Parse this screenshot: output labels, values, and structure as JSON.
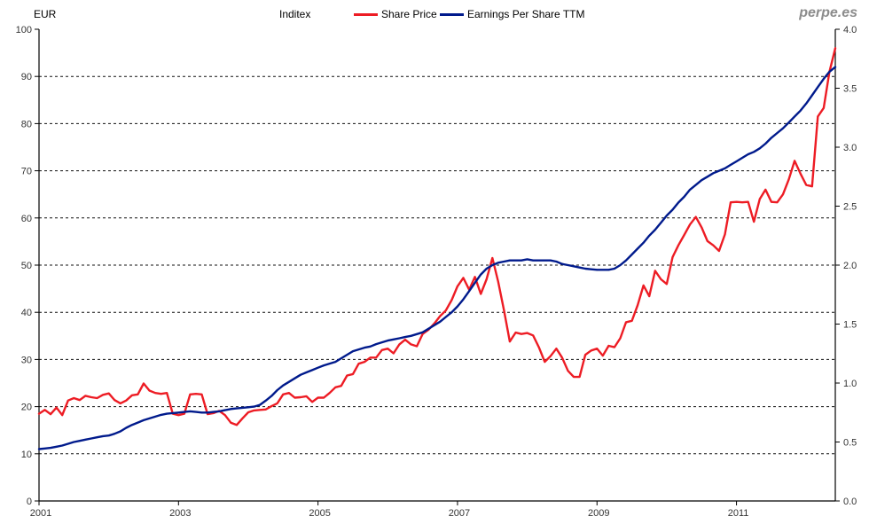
{
  "header": {
    "axis_unit_label": "EUR",
    "title": "Inditex",
    "watermark": "perpe.es"
  },
  "legend": [
    {
      "label": "Share Price",
      "color": "#ed1c24"
    },
    {
      "label": "Earnings Per Share TTM",
      "color": "#001a8c"
    }
  ],
  "chart_data": {
    "type": "line",
    "title": "Inditex",
    "x_unit": "monthly, Jan 2001 to mid 2012",
    "x_tick_labels": [
      "2001",
      "2003",
      "2005",
      "2007",
      "2009",
      "2011"
    ],
    "x_years_per_label_gap": 2,
    "left_axis": {
      "title": "EUR",
      "min": 0,
      "max": 100,
      "tick_step": 10,
      "tick_labels": [
        "0",
        "10",
        "20",
        "30",
        "40",
        "50",
        "60",
        "70",
        "80",
        "90",
        "100"
      ]
    },
    "right_axis": {
      "min": 0.0,
      "max": 4.0,
      "tick_step": 0.5,
      "tick_labels": [
        "0.0",
        "0.5",
        "1.0",
        "1.5",
        "2.0",
        "2.5",
        "3.0",
        "3.5",
        "4.0"
      ]
    },
    "grid": "horizontal dashed black lines at left-axis steps of 10",
    "legend_position": "top-center",
    "series": [
      {
        "name": "Share Price",
        "axis": "left",
        "color": "#ed1c24",
        "values": [
          18.5,
          19.3,
          18.4,
          19.8,
          18.2,
          21.3,
          21.8,
          21.4,
          22.3,
          22.0,
          21.8,
          22.5,
          22.8,
          21.4,
          20.7,
          21.3,
          22.4,
          22.6,
          24.9,
          23.4,
          22.9,
          22.7,
          22.9,
          18.5,
          18.2,
          18.5,
          22.6,
          22.7,
          22.6,
          18.4,
          18.6,
          19.1,
          18.2,
          16.6,
          16.1,
          17.5,
          18.8,
          19.2,
          19.3,
          19.4,
          20.1,
          20.7,
          22.6,
          22.9,
          21.9,
          22.0,
          22.2,
          21.0,
          21.9,
          21.9,
          22.9,
          24.1,
          24.4,
          26.6,
          26.9,
          29.1,
          29.5,
          30.4,
          30.4,
          32.0,
          32.3,
          31.3,
          33.2,
          34.2,
          33.2,
          32.8,
          35.4,
          36.3,
          37.6,
          39.2,
          40.4,
          42.6,
          45.5,
          47.3,
          44.8,
          47.5,
          43.9,
          47.0,
          51.5,
          46.5,
          40.4,
          33.8,
          35.7,
          35.4,
          35.6,
          35.1,
          32.6,
          29.5,
          30.7,
          32.3,
          30.4,
          27.6,
          26.3,
          26.3,
          31.0,
          31.9,
          32.3,
          30.8,
          32.9,
          32.6,
          34.5,
          37.9,
          38.2,
          41.5,
          45.7,
          43.4,
          48.8,
          47.0,
          46.0,
          51.7,
          54.2,
          56.4,
          58.6,
          60.2,
          58.0,
          55.1,
          54.2,
          53.0,
          56.5,
          63.3,
          63.4,
          63.3,
          63.4,
          59.2,
          64.0,
          66.0,
          63.4,
          63.3,
          65.0,
          68.2,
          72.1,
          69.4,
          67.0,
          66.7,
          81.5,
          83.3,
          91.0,
          96.0
        ]
      },
      {
        "name": "Earnings Per Share TTM",
        "axis": "right",
        "color": "#001a8c",
        "values": [
          0.44,
          0.445,
          0.45,
          0.46,
          0.47,
          0.485,
          0.5,
          0.51,
          0.52,
          0.53,
          0.54,
          0.55,
          0.555,
          0.57,
          0.59,
          0.62,
          0.645,
          0.665,
          0.685,
          0.7,
          0.715,
          0.73,
          0.74,
          0.745,
          0.75,
          0.755,
          0.76,
          0.755,
          0.75,
          0.75,
          0.755,
          0.76,
          0.77,
          0.78,
          0.785,
          0.79,
          0.795,
          0.8,
          0.815,
          0.85,
          0.89,
          0.94,
          0.98,
          1.01,
          1.04,
          1.07,
          1.09,
          1.11,
          1.13,
          1.15,
          1.165,
          1.18,
          1.21,
          1.24,
          1.27,
          1.285,
          1.3,
          1.31,
          1.33,
          1.345,
          1.36,
          1.37,
          1.38,
          1.39,
          1.4,
          1.415,
          1.43,
          1.46,
          1.49,
          1.52,
          1.56,
          1.6,
          1.65,
          1.71,
          1.78,
          1.85,
          1.92,
          1.97,
          2.0,
          2.02,
          2.03,
          2.04,
          2.04,
          2.04,
          2.05,
          2.04,
          2.04,
          2.04,
          2.04,
          2.03,
          2.01,
          2.0,
          1.99,
          1.98,
          1.97,
          1.965,
          1.96,
          1.96,
          1.96,
          1.97,
          2.0,
          2.04,
          2.09,
          2.14,
          2.19,
          2.25,
          2.3,
          2.36,
          2.42,
          2.47,
          2.53,
          2.58,
          2.64,
          2.68,
          2.72,
          2.75,
          2.78,
          2.8,
          2.82,
          2.85,
          2.88,
          2.91,
          2.94,
          2.96,
          2.99,
          3.03,
          3.08,
          3.12,
          3.16,
          3.21,
          3.26,
          3.31,
          3.37,
          3.44,
          3.51,
          3.58,
          3.64,
          3.68
        ]
      }
    ]
  }
}
